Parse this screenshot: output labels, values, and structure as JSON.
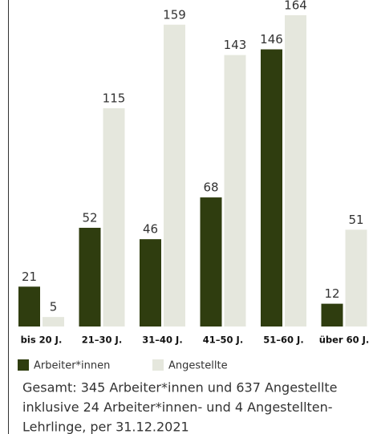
{
  "chart_data": {
    "type": "bar",
    "categories": [
      "bis 20 J.",
      "21–30 J.",
      "31–40 J.",
      "41–50 J.",
      "51–60 J.",
      "über 60 J."
    ],
    "series": [
      {
        "name": "Arbeiter*innen",
        "color": "#2f3d0f",
        "values": [
          21,
          52,
          46,
          68,
          146,
          12
        ]
      },
      {
        "name": "Angestellte",
        "color": "#e5e7dd",
        "values": [
          5,
          115,
          159,
          143,
          164,
          51
        ]
      }
    ],
    "ylim": [
      0,
      172
    ],
    "footnote": [
      "Gesamt: 345 Arbeiter*innen und 637 Angestellte",
      "inklusive 24 Arbeiter*innen- und 4 Angestellten-",
      "Lehrlinge, per 31.12.2021"
    ]
  }
}
